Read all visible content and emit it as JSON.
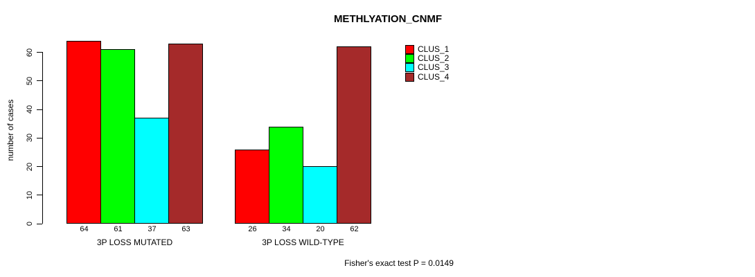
{
  "title": "METHLYATION_CNMF",
  "y_axis": {
    "label": "number of cases",
    "ticks": [
      0,
      10,
      20,
      30,
      40,
      50,
      60
    ]
  },
  "footer": "Fisher's exact test P = 0.0149",
  "legend": {
    "items": [
      {
        "label": "CLUS_1",
        "color": "#ff0000"
      },
      {
        "label": "CLUS_2",
        "color": "#00ff00"
      },
      {
        "label": "CLUS_3",
        "color": "#00ffff"
      },
      {
        "label": "CLUS_4",
        "color": "#a52a2a"
      }
    ]
  },
  "chart_data": {
    "type": "bar",
    "title": "METHLYATION_CNMF",
    "xlabel": "",
    "ylabel": "number of cases",
    "ylim": [
      0,
      64
    ],
    "yticks": [
      0,
      10,
      20,
      30,
      40,
      50,
      60
    ],
    "categories": [
      "3P LOSS MUTATED",
      "3P LOSS WILD-TYPE"
    ],
    "series": [
      {
        "name": "CLUS_1",
        "color": "#ff0000",
        "values": [
          64,
          26
        ]
      },
      {
        "name": "CLUS_2",
        "color": "#00ff00",
        "values": [
          61,
          34
        ]
      },
      {
        "name": "CLUS_3",
        "color": "#00ffff",
        "values": [
          37,
          20
        ]
      },
      {
        "name": "CLUS_4",
        "color": "#a52a2a",
        "values": [
          63,
          62
        ]
      }
    ],
    "bar_value_labels": [
      [
        64,
        61,
        37,
        63
      ],
      [
        26,
        34,
        20,
        62
      ]
    ],
    "legend_entries": [
      "CLUS_1",
      "CLUS_2",
      "CLUS_3",
      "CLUS_4"
    ],
    "legend_position": "right",
    "grid": false,
    "annotation": "Fisher's exact test P = 0.0149"
  }
}
